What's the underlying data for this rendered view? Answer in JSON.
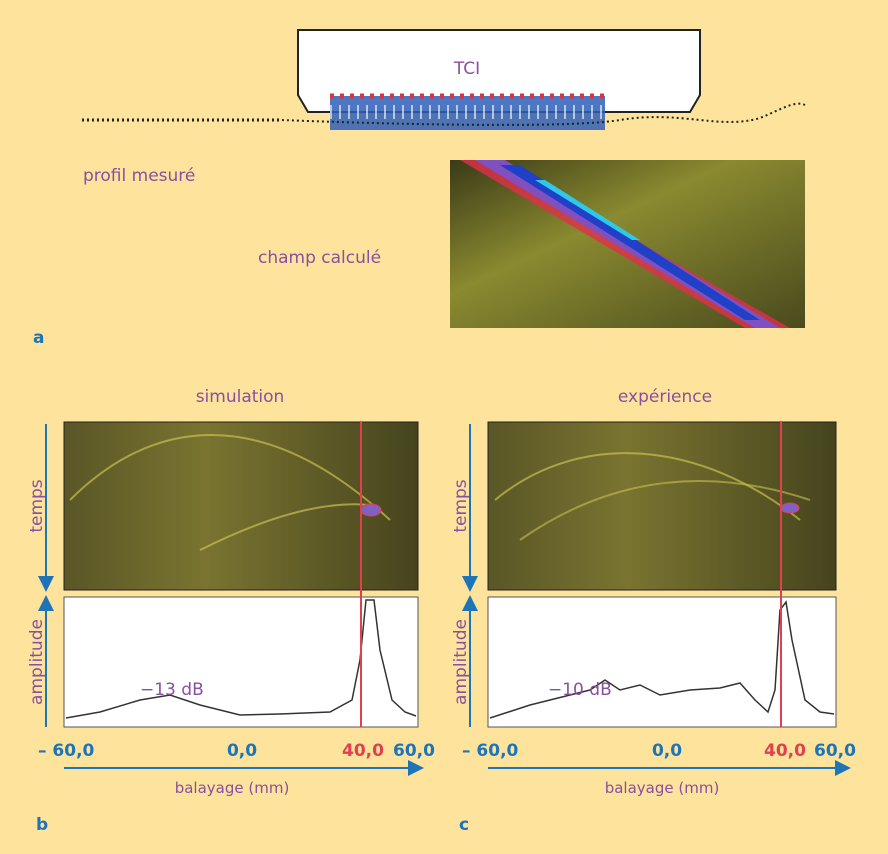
{
  "panel_a": {
    "label": "a",
    "transducer": "TCI",
    "profile": "profil mesuré",
    "field": "champ calculé"
  },
  "panel_b": {
    "label": "b",
    "title": "simulation",
    "time_axis": "temps",
    "amplitude_axis": "amplitude",
    "annotation": "−13 dB",
    "ticks": [
      "– 60,0",
      "0,0",
      "40,0",
      "60,0"
    ],
    "scan_axis": "balayage (mm)"
  },
  "panel_c": {
    "label": "c",
    "title": "expérience",
    "time_axis": "temps",
    "amplitude_axis": "amplitude",
    "annotation": "−10 dB",
    "ticks": [
      "– 60,0",
      "0,0",
      "40,0",
      "60,0"
    ],
    "scan_axis": "balayage (mm)"
  }
}
